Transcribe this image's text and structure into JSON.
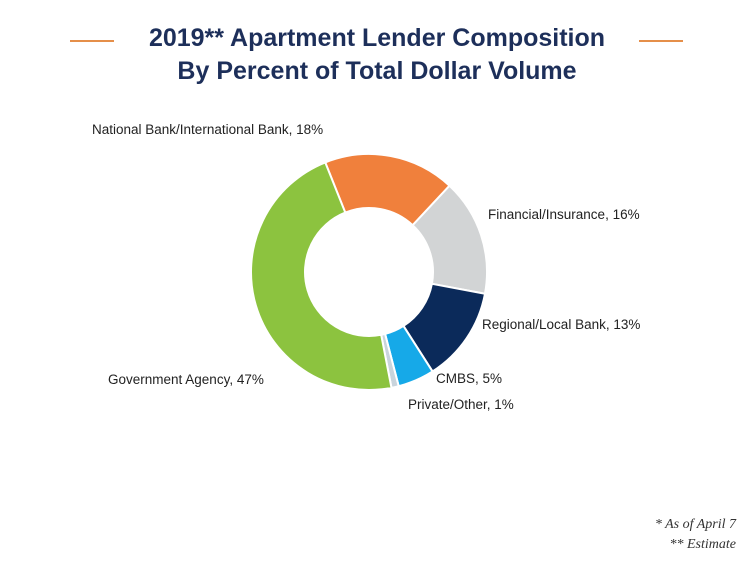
{
  "title": {
    "line1": "2019** Apartment Lender Composition",
    "line2": "By Percent of Total Dollar Volume"
  },
  "colors": {
    "title": "#1d2f5a",
    "rule": "#e58f4a"
  },
  "chart_data": {
    "type": "pie",
    "donut": true,
    "unit": "%",
    "slices": [
      {
        "name": "National Bank/International Bank",
        "label": "National Bank/International Bank, 18%",
        "value": 18,
        "color": "#f0803c"
      },
      {
        "name": "Financial/Insurance",
        "label": "Financial/Insurance, 16%",
        "value": 16,
        "color": "#d2d4d5"
      },
      {
        "name": "Regional/Local Bank",
        "label": "Regional/Local Bank, 13%",
        "value": 13,
        "color": "#0b2a5a"
      },
      {
        "name": "CMBS",
        "label": "CMBS, 5%",
        "value": 5,
        "color": "#16a9e8"
      },
      {
        "name": "Private/Other",
        "label": "Private/Other, 1%",
        "value": 1,
        "color": "#c9d4dc"
      },
      {
        "name": "Government Agency",
        "label": "Government Agency, 47%",
        "value": 47,
        "color": "#8cc33f"
      }
    ]
  },
  "footnotes": {
    "line1": "* As of April 7",
    "line2": "** Estimate"
  }
}
